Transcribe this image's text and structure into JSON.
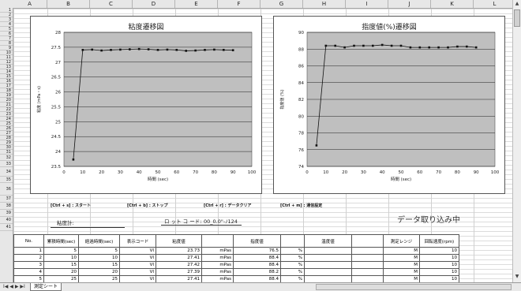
{
  "columns": [
    "A",
    "B",
    "C",
    "D",
    "E",
    "F",
    "G",
    "H",
    "I",
    "J",
    "K",
    "L",
    "M"
  ],
  "rows": [
    "1",
    "2",
    "3",
    "4",
    "5",
    "6",
    "7",
    "8",
    "9",
    "10",
    "11",
    "12",
    "13",
    "14",
    "15",
    "16",
    "17",
    "18",
    "19",
    "20",
    "21",
    "22",
    "23",
    "24",
    "25",
    "26",
    "27",
    "28",
    "29",
    "30",
    "31",
    "32",
    "33",
    "34",
    "35",
    "36",
    "37",
    "38",
    "39",
    "40",
    "41"
  ],
  "chart_data": [
    {
      "type": "line",
      "title": "粘度遷移図",
      "xlabel": "時間 (sec)",
      "ylabel": "粘度 (mPa・s)",
      "xlim": [
        0,
        100
      ],
      "ylim": [
        23.5,
        28
      ],
      "xticks": [
        "0",
        "10",
        "20",
        "30",
        "40",
        "50",
        "60",
        "70",
        "80",
        "90",
        "100"
      ],
      "yticks": [
        "28",
        "27.5",
        "27",
        "26.5",
        "26",
        "25.5",
        "25",
        "24.5",
        "24",
        "23.5"
      ],
      "x": [
        5,
        10,
        15,
        20,
        25,
        30,
        35,
        40,
        45,
        50,
        55,
        60,
        65,
        70,
        75,
        80,
        85,
        90
      ],
      "values": [
        23.73,
        27.41,
        27.42,
        27.39,
        27.41,
        27.42,
        27.43,
        27.44,
        27.43,
        27.41,
        27.42,
        27.41,
        27.38,
        27.39,
        27.41,
        27.42,
        27.41,
        27.4
      ]
    },
    {
      "type": "line",
      "title": "指度値(%)遷移図",
      "xlabel": "時間 (sec)",
      "ylabel": "指度値 (%)",
      "xlim": [
        0,
        100
      ],
      "ylim": [
        74,
        90
      ],
      "xticks": [
        "0",
        "10",
        "20",
        "30",
        "40",
        "50",
        "60",
        "70",
        "80",
        "90",
        "100"
      ],
      "yticks": [
        "90",
        "88",
        "86",
        "84",
        "82",
        "80",
        "78",
        "76",
        "74"
      ],
      "x": [
        5,
        10,
        15,
        20,
        25,
        30,
        35,
        40,
        45,
        50,
        55,
        60,
        65,
        70,
        75,
        80,
        85,
        90
      ],
      "values": [
        76.5,
        88.4,
        88.4,
        88.2,
        88.4,
        88.4,
        88.4,
        88.5,
        88.4,
        88.4,
        88.2,
        88.2,
        88.2,
        88.2,
        88.2,
        88.3,
        88.3,
        88.2
      ]
    }
  ],
  "shortcuts": [
    {
      "key": "[Ctrl + s]",
      "label": ": スタート"
    },
    {
      "key": "[Ctrl + b]",
      "label": ": ストップ"
    },
    {
      "key": "[Ctrl + r]",
      "label": ": データクリア"
    },
    {
      "key": "[Ctrl + m]",
      "label": ": 通信設定"
    }
  ],
  "viscometer_label": "粘度計:",
  "lot_label": "ロ ット コ ード:",
  "lot_value": "00_0.0\"-ﾉ124",
  "status_text": "データ取り込み中",
  "table": {
    "headers": [
      "No.",
      "累積時間(sec)",
      "経過時間(sec)",
      "表示コード",
      "粘度値",
      "",
      "指度値",
      "",
      "温度値",
      "",
      "測定レンジ",
      "回転速度(rpm)"
    ],
    "rows": [
      [
        "1",
        "5",
        "5",
        "VI",
        "23.73",
        "mPas",
        "76.5",
        "%",
        "",
        "",
        "M",
        "10"
      ],
      [
        "2",
        "10",
        "10",
        "VI",
        "27.41",
        "mPas",
        "88.4",
        "%",
        "",
        "",
        "M",
        "10"
      ],
      [
        "3",
        "15",
        "15",
        "VI",
        "27.42",
        "mPas",
        "88.4",
        "%",
        "",
        "",
        "M",
        "10"
      ],
      [
        "4",
        "20",
        "20",
        "VI",
        "27.39",
        "mPas",
        "88.2",
        "%",
        "",
        "",
        "M",
        "10"
      ],
      [
        "5",
        "25",
        "25",
        "VI",
        "27.41",
        "mPas",
        "88.4",
        "%",
        "",
        "",
        "M",
        "10"
      ]
    ]
  },
  "sheet_tab": "測定シート",
  "sheet_nav": "I◀ ◀ ▶ ▶I"
}
